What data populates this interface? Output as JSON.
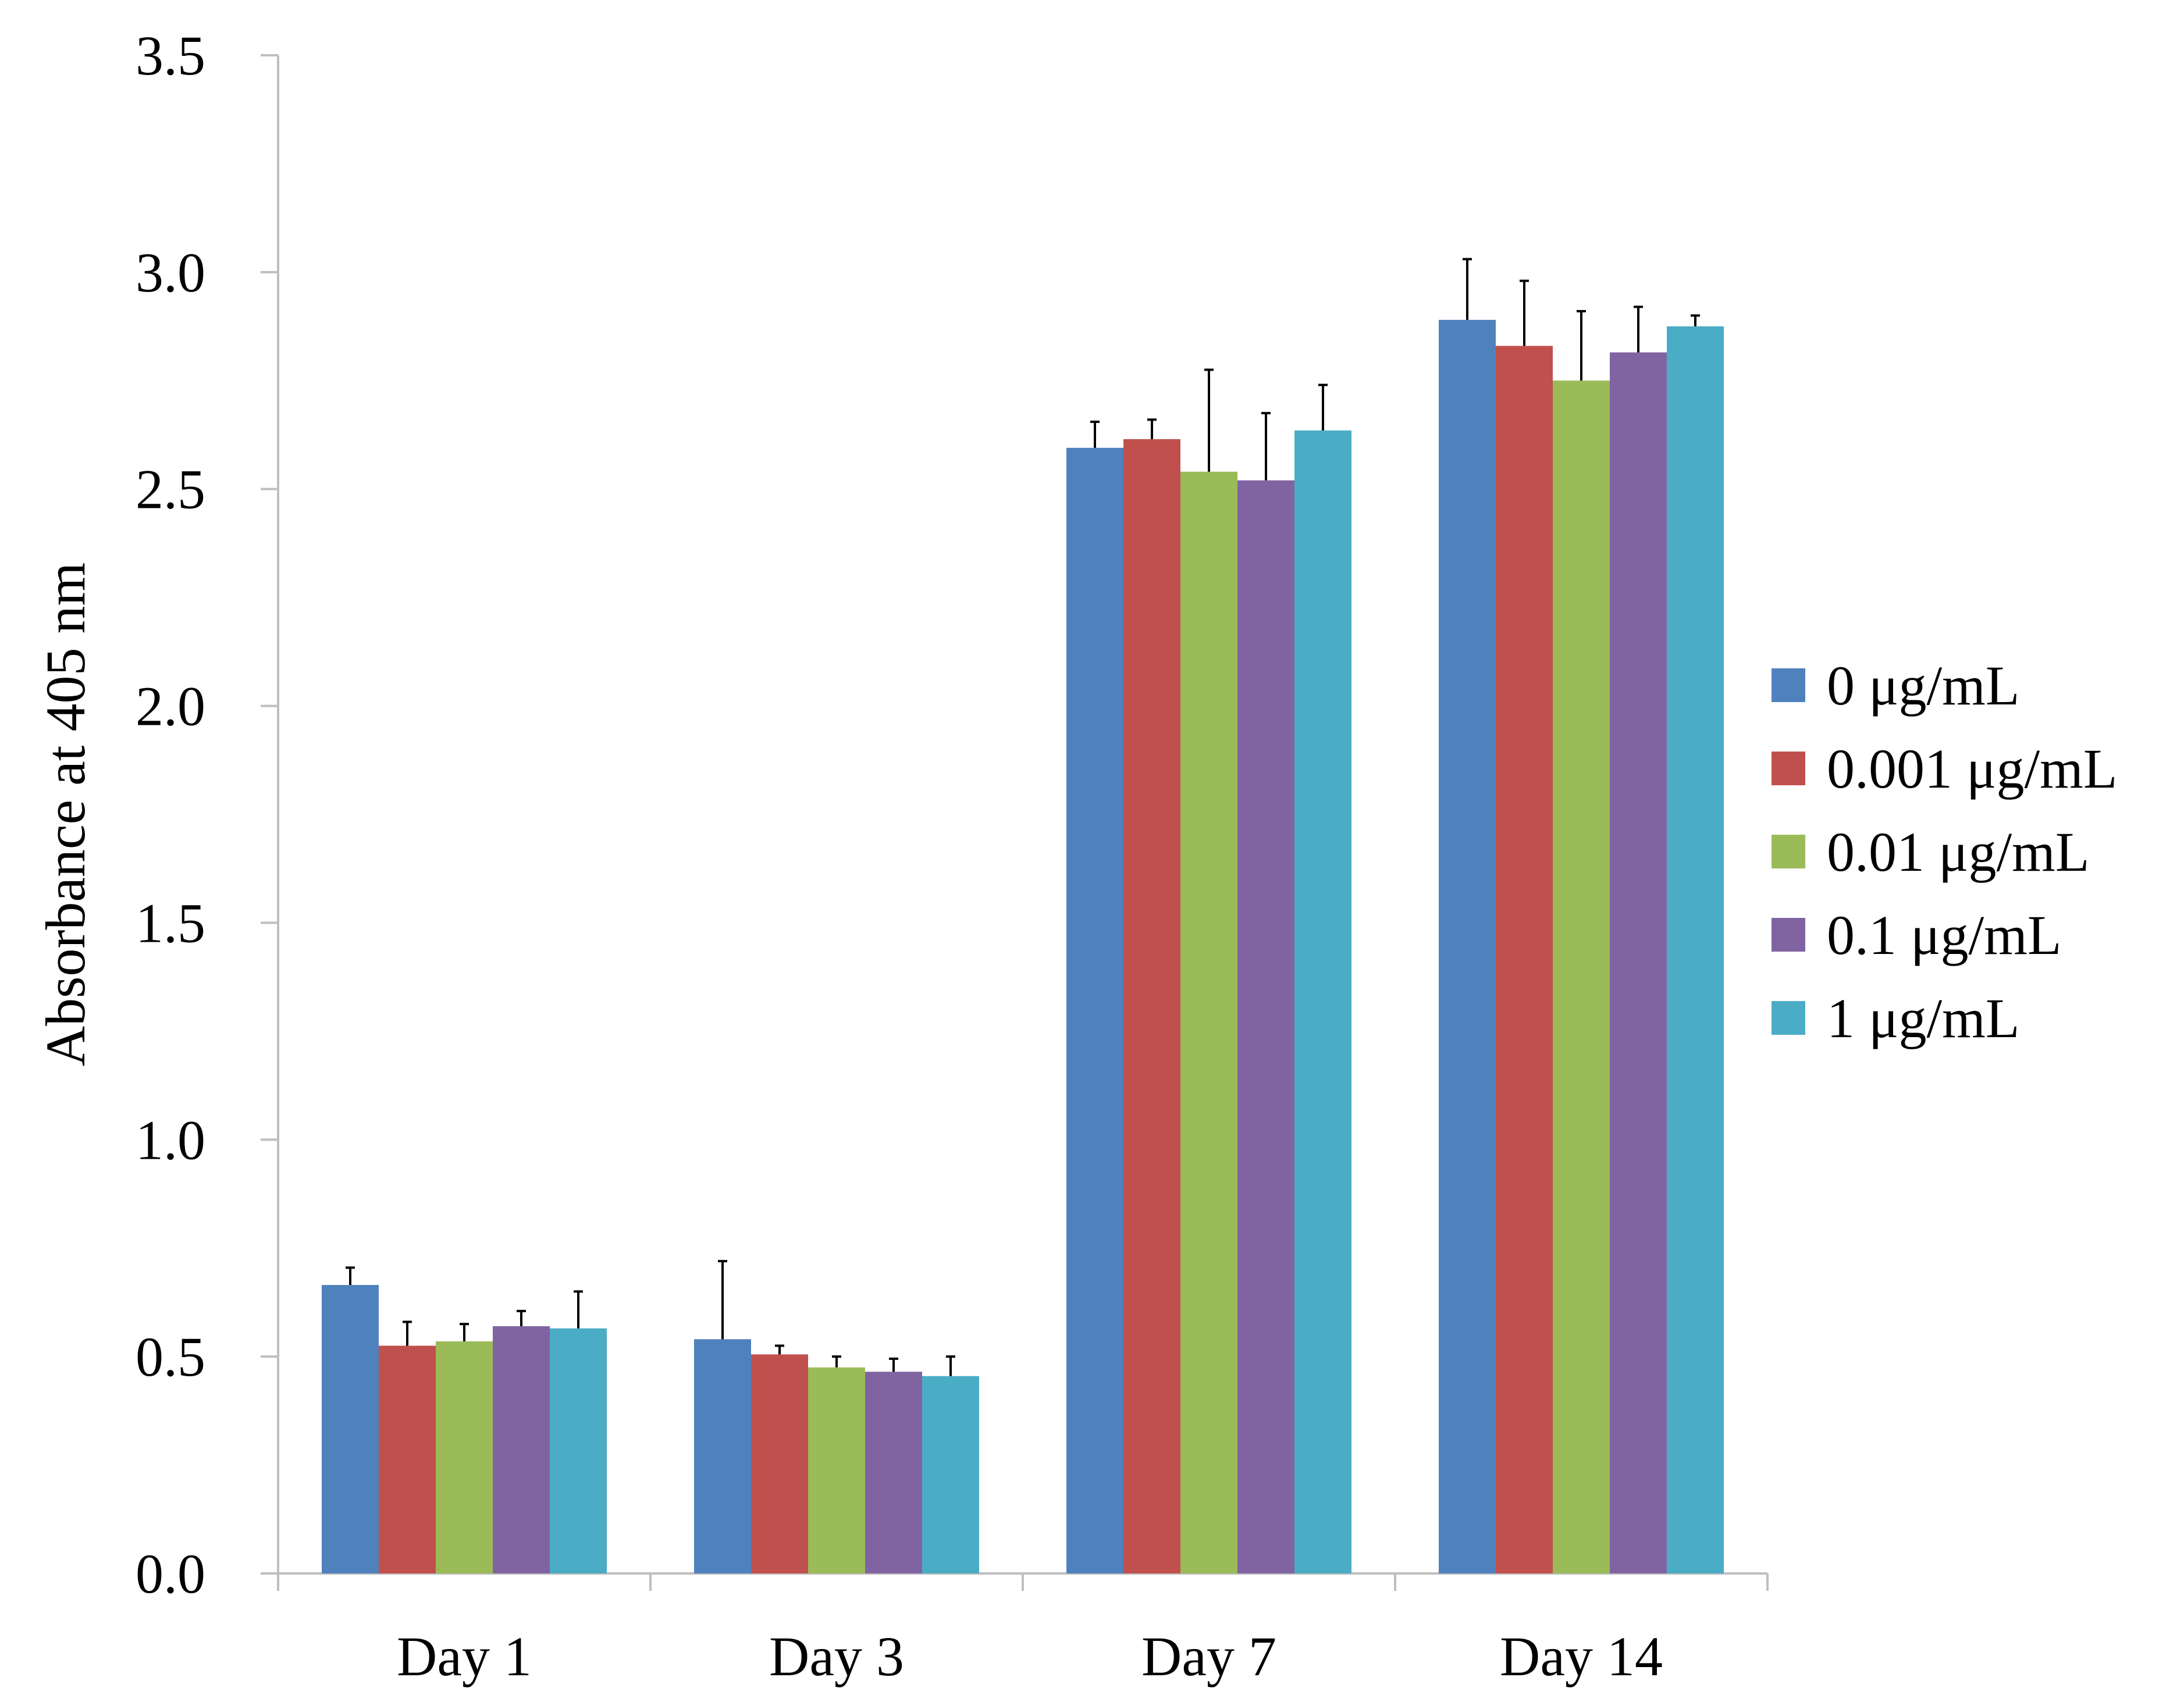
{
  "chart_data": {
    "type": "bar",
    "title": "",
    "xlabel": "",
    "ylabel": "Absorbance at 405 nm",
    "ylim": [
      0,
      3.5
    ],
    "yticks": [
      "0.0",
      "0.5",
      "1.0",
      "1.5",
      "2.0",
      "2.5",
      "3.0",
      "3.5"
    ],
    "categories": [
      "Day 1",
      "Day 3",
      "Day 7",
      "Day 14"
    ],
    "legend_position": "right",
    "grid": false,
    "series": [
      {
        "name": "0 μg/mL",
        "color": "#4f81bd",
        "values": [
          0.665,
          0.54,
          2.595,
          2.89
        ],
        "errors": [
          0.04,
          0.18,
          0.06,
          0.14
        ]
      },
      {
        "name": "0.001 μg/mL",
        "color": "#c0504d",
        "values": [
          0.525,
          0.505,
          2.615,
          2.83
        ],
        "errors": [
          0.055,
          0.02,
          0.045,
          0.15
        ]
      },
      {
        "name": "0.01 μg/mL",
        "color": "#9bbb59",
        "values": [
          0.535,
          0.475,
          2.54,
          2.75
        ],
        "errors": [
          0.04,
          0.025,
          0.235,
          0.16
        ]
      },
      {
        "name": "0.1 μg/mL",
        "color": "#8064a2",
        "values": [
          0.57,
          0.465,
          2.52,
          2.815
        ],
        "errors": [
          0.035,
          0.03,
          0.155,
          0.105
        ]
      },
      {
        "name": "1 μg/mL",
        "color": "#4bacc6",
        "values": [
          0.565,
          0.455,
          2.635,
          2.875
        ],
        "errors": [
          0.085,
          0.045,
          0.105,
          0.025
        ]
      }
    ]
  }
}
